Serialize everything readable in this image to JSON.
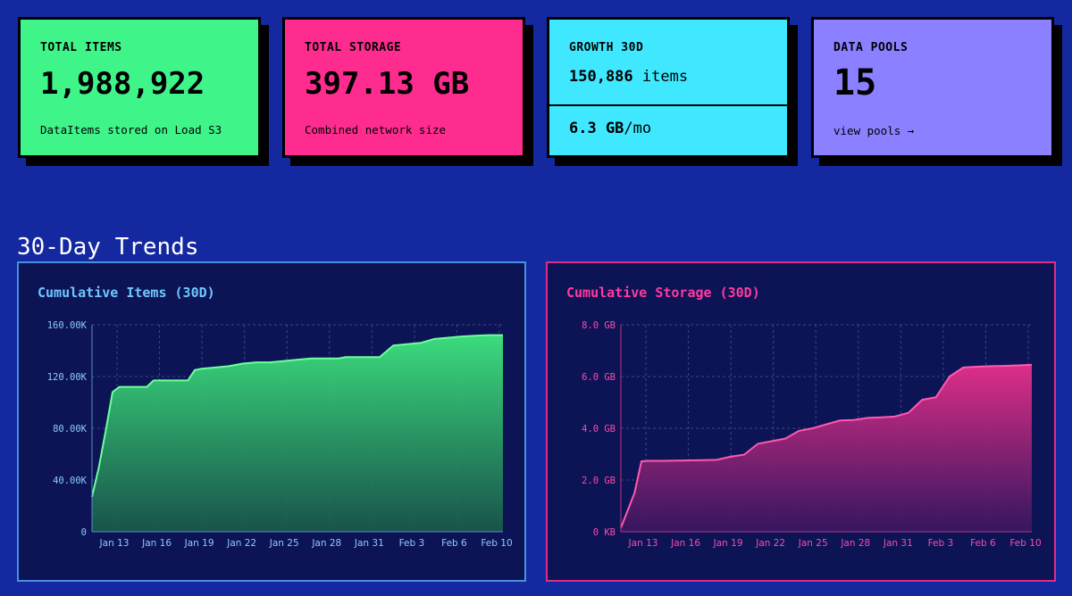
{
  "cards": {
    "total_items": {
      "label": "TOTAL ITEMS",
      "value": "1,988,922",
      "sub": "DataItems stored on Load S3"
    },
    "total_storage": {
      "label": "TOTAL STORAGE",
      "value": "397.13 GB",
      "sub": "Combined network size"
    },
    "growth": {
      "label": "GROWTH 30D",
      "items_value": "150,886",
      "items_unit": "items",
      "storage_value": "6.3 GB",
      "storage_unit": "/mo"
    },
    "data_pools": {
      "label": "DATA POOLS",
      "value": "15",
      "link": "view pools →"
    }
  },
  "section_title": "30-Day Trends",
  "colors": {
    "green": "#3ff58a",
    "pink": "#ff2c90",
    "cyan": "#3fe8ff",
    "purple": "#8b80ff",
    "background": "#1428a0"
  },
  "chart_data": [
    {
      "type": "area",
      "title": "Cumulative Items (30D)",
      "xlabel": "",
      "ylabel": "",
      "ylim": [
        0,
        160000
      ],
      "y_ticks": [
        "0",
        "40.00K",
        "80.00K",
        "120.00K",
        "160.00K"
      ],
      "x_ticks": [
        "Jan 13",
        "Jan 16",
        "Jan 19",
        "Jan 22",
        "Jan 25",
        "Jan 28",
        "Jan 31",
        "Feb 3",
        "Feb 6",
        "Feb 10"
      ],
      "grid": true,
      "x": [
        0,
        0.5,
        1,
        1.5,
        2,
        3,
        4,
        4.5,
        5,
        6,
        7,
        7.5,
        8,
        9,
        10,
        11,
        12,
        13,
        14,
        15,
        16,
        17,
        18,
        18.5,
        19,
        20,
        21,
        22,
        23,
        24,
        25,
        26,
        27,
        28,
        29,
        30
      ],
      "values": [
        27000,
        50000,
        78000,
        108000,
        112000,
        112000,
        112000,
        117000,
        117000,
        117000,
        117000,
        125000,
        126000,
        127000,
        128000,
        130000,
        131000,
        131000,
        132000,
        133000,
        134000,
        134000,
        134000,
        135000,
        135000,
        135000,
        135000,
        144000,
        145000,
        146000,
        149000,
        150000,
        151000,
        151500,
        152000,
        152000
      ]
    },
    {
      "type": "area",
      "title": "Cumulative Storage (30D)",
      "xlabel": "",
      "ylabel": "",
      "ylim": [
        0,
        8
      ],
      "y_ticks": [
        "0 KB",
        "2.0 GB",
        "4.0 GB",
        "6.0 GB",
        "8.0 GB"
      ],
      "x_ticks": [
        "Jan 13",
        "Jan 16",
        "Jan 19",
        "Jan 22",
        "Jan 25",
        "Jan 28",
        "Jan 31",
        "Feb 3",
        "Feb 6",
        "Feb 10"
      ],
      "grid": true,
      "x": [
        0,
        1,
        1.5,
        2,
        3,
        4,
        5,
        6,
        7,
        8,
        9,
        10,
        11,
        12,
        13,
        14,
        15,
        16,
        17,
        18,
        19,
        20,
        21,
        22,
        23,
        24,
        25,
        26,
        27,
        28,
        29,
        30
      ],
      "values": [
        0.15,
        1.5,
        2.72,
        2.74,
        2.74,
        2.75,
        2.76,
        2.77,
        2.78,
        2.9,
        2.98,
        3.4,
        3.5,
        3.6,
        3.9,
        4.0,
        4.15,
        4.3,
        4.32,
        4.4,
        4.42,
        4.45,
        4.6,
        5.1,
        5.2,
        6.0,
        6.35,
        6.38,
        6.4,
        6.41,
        6.43,
        6.45
      ]
    }
  ]
}
